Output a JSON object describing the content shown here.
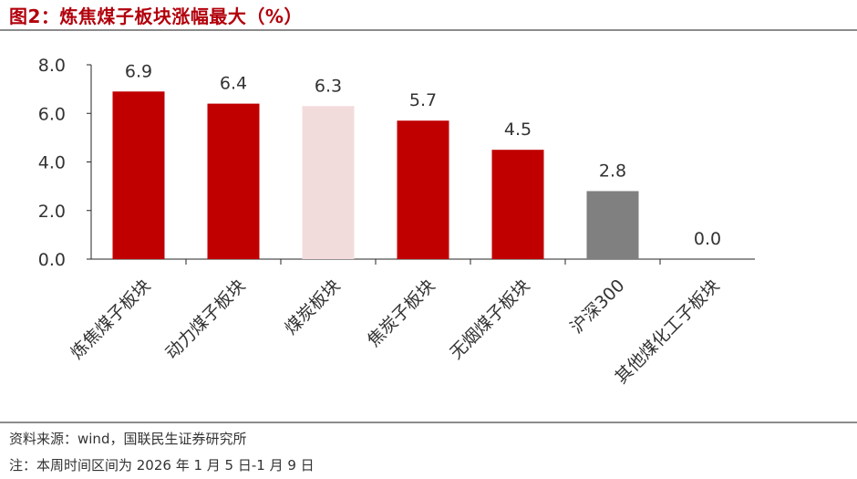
{
  "title": "图2：炼焦煤子板块涨幅最大（%）",
  "footer": {
    "source": "资料来源：wind，国联民生证券研究所",
    "note": "注：本周时间区间为 2026 年 1 月 5 日-1 月 9 日"
  },
  "colors": {
    "title": "#b2000b",
    "primary_bar": "#c00000",
    "highlight_bar": "#f2dcdb",
    "benchmark_bar": "#808080",
    "axis": "#262626",
    "rule": "#8c8c8c"
  },
  "chart_data": {
    "type": "bar",
    "categories": [
      "炼焦煤子板块",
      "动力煤子板块",
      "煤炭板块",
      "焦炭子板块",
      "无烟煤子板块",
      "沪深300",
      "其他煤化工子板块"
    ],
    "values": [
      6.9,
      6.4,
      6.3,
      5.7,
      4.5,
      2.8,
      0.0
    ],
    "value_labels": [
      "6.9",
      "6.4",
      "6.3",
      "5.7",
      "4.5",
      "2.8",
      "0.0"
    ],
    "bar_colors": [
      "#c00000",
      "#c00000",
      "#f2dcdb",
      "#c00000",
      "#c00000",
      "#808080",
      "#c00000"
    ],
    "ylim": [
      0,
      8
    ],
    "yticks": [
      "0.0",
      "2.0",
      "4.0",
      "6.0",
      "8.0"
    ],
    "ytick_values": [
      0,
      2,
      4,
      6,
      8
    ],
    "grid": false,
    "legend": "none",
    "xlabel": "",
    "ylabel": ""
  }
}
